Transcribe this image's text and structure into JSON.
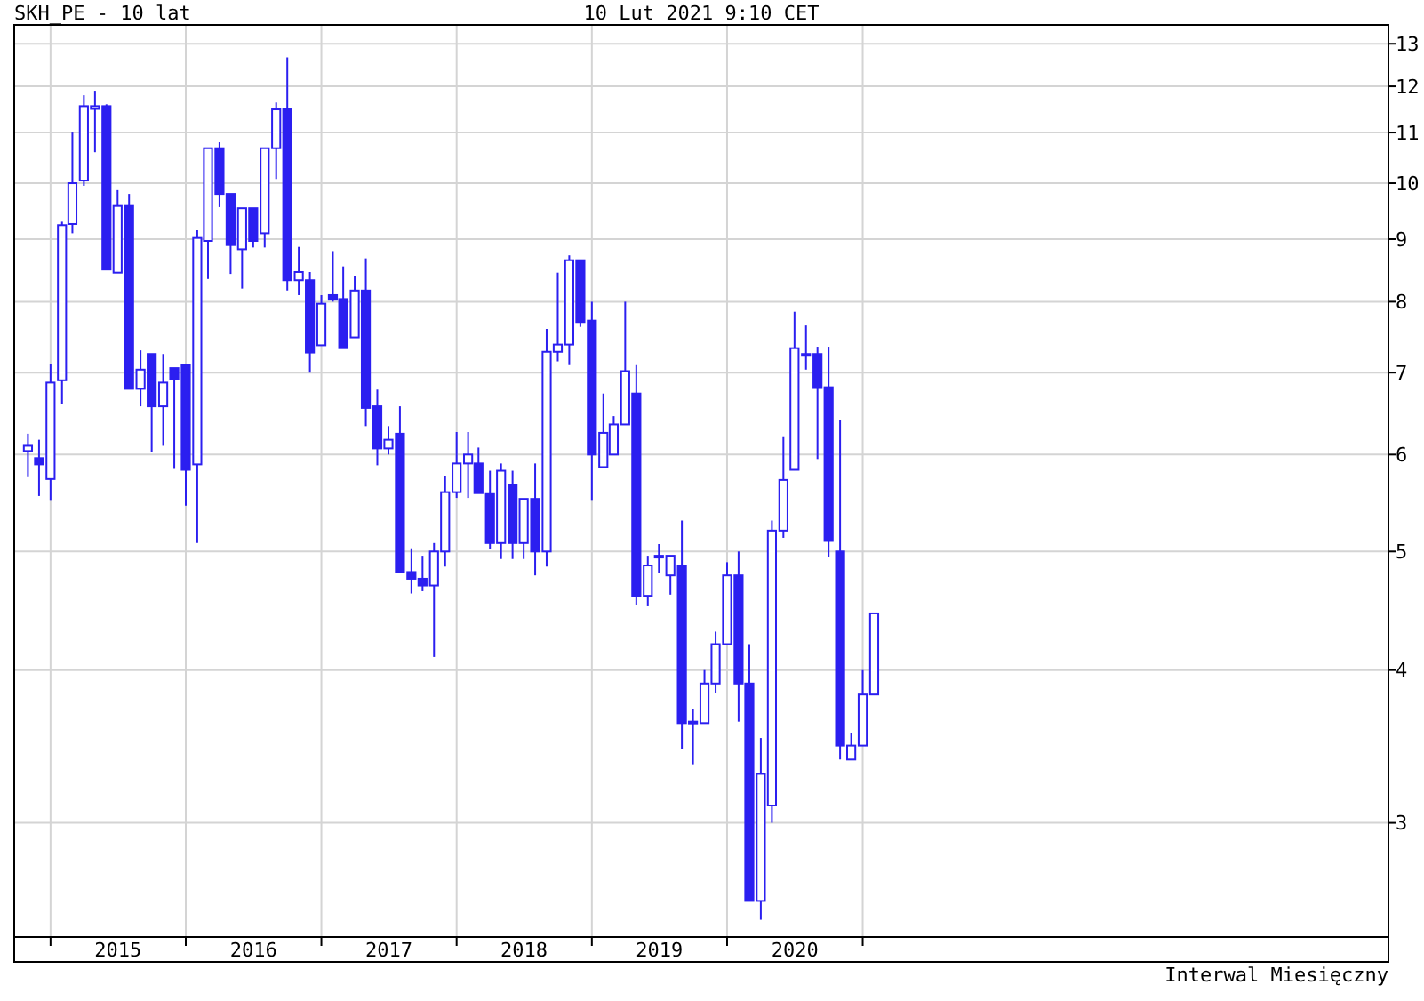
{
  "chart_data": {
    "type": "candlestick",
    "title": "SKH_PE - 10 lat",
    "subtitle": "10 Lut 2021 9:10 CET",
    "annotations": [
      "Interwal Miesięczny"
    ],
    "color": "#2b1ff0",
    "log": "y",
    "grid": true,
    "x": [
      "2014-11",
      "2014-12",
      "2015-01",
      "2015-02",
      "2015-03",
      "2015-04",
      "2015-05",
      "2015-06",
      "2015-07",
      "2015-08",
      "2015-09",
      "2015-10",
      "2015-11",
      "2015-12",
      "2016-01",
      "2016-02",
      "2016-03",
      "2016-04",
      "2016-05",
      "2016-06",
      "2016-07",
      "2016-08",
      "2016-09",
      "2016-10",
      "2016-11",
      "2016-12",
      "2017-01",
      "2017-02",
      "2017-03",
      "2017-04",
      "2017-05",
      "2017-06",
      "2017-07",
      "2017-08",
      "2017-09",
      "2017-10",
      "2017-11",
      "2017-12",
      "2018-01",
      "2018-02",
      "2018-03",
      "2018-04",
      "2018-05",
      "2018-06",
      "2018-07",
      "2018-08",
      "2018-09",
      "2018-10",
      "2018-11",
      "2018-12",
      "2019-01",
      "2019-02",
      "2019-03",
      "2019-04",
      "2019-05",
      "2019-06",
      "2019-07",
      "2019-08",
      "2019-09",
      "2019-10",
      "2019-11",
      "2019-12",
      "2020-01",
      "2020-02",
      "2020-03",
      "2020-04",
      "2020-05",
      "2020-06",
      "2020-07",
      "2020-08",
      "2020-09",
      "2020-10",
      "2020-11",
      "2020-12",
      "2021-01",
      "2021-02"
    ],
    "ohlc": [
      [
        6.04,
        6.24,
        5.75,
        6.1
      ],
      [
        5.96,
        6.17,
        5.55,
        5.89
      ],
      [
        5.73,
        7.12,
        5.5,
        6.87
      ],
      [
        6.9,
        9.3,
        6.6,
        9.24
      ],
      [
        9.26,
        11.0,
        9.1,
        10.0
      ],
      [
        10.05,
        11.8,
        9.95,
        11.56
      ],
      [
        11.5,
        11.9,
        10.6,
        11.56
      ],
      [
        11.56,
        11.6,
        8.5,
        8.5
      ],
      [
        8.45,
        9.87,
        8.45,
        9.58
      ],
      [
        9.58,
        9.8,
        6.79,
        6.79
      ],
      [
        6.79,
        7.3,
        6.57,
        7.04
      ],
      [
        7.25,
        7.25,
        6.03,
        6.57
      ],
      [
        6.57,
        7.25,
        6.1,
        6.87
      ],
      [
        7.06,
        7.06,
        5.84,
        6.91
      ],
      [
        7.1,
        7.1,
        5.45,
        5.83
      ],
      [
        5.89,
        9.15,
        5.08,
        9.02
      ],
      [
        8.97,
        10.68,
        8.35,
        10.68
      ],
      [
        10.68,
        10.8,
        9.56,
        9.8
      ],
      [
        9.8,
        9.8,
        8.43,
        8.9
      ],
      [
        8.83,
        9.54,
        8.2,
        9.54
      ],
      [
        9.54,
        9.54,
        8.86,
        8.97
      ],
      [
        9.1,
        10.68,
        8.86,
        10.68
      ],
      [
        10.68,
        11.64,
        10.08,
        11.49
      ],
      [
        11.49,
        12.67,
        8.17,
        8.33
      ],
      [
        8.33,
        8.87,
        8.1,
        8.46
      ],
      [
        8.33,
        8.46,
        7.0,
        7.27
      ],
      [
        7.37,
        8.1,
        7.37,
        7.97
      ],
      [
        8.1,
        8.8,
        8.0,
        8.03
      ],
      [
        8.04,
        8.55,
        7.33,
        7.33
      ],
      [
        7.48,
        8.4,
        7.48,
        8.17
      ],
      [
        8.17,
        8.68,
        6.33,
        6.55
      ],
      [
        6.57,
        6.78,
        5.88,
        6.07
      ],
      [
        6.07,
        6.33,
        6.0,
        6.17
      ],
      [
        6.24,
        6.57,
        4.81,
        4.81
      ],
      [
        4.81,
        5.03,
        4.62,
        4.75
      ],
      [
        4.75,
        4.96,
        4.64,
        4.69
      ],
      [
        4.69,
        5.08,
        4.1,
        5.0
      ],
      [
        5.0,
        5.76,
        4.86,
        5.59
      ],
      [
        5.59,
        6.26,
        5.53,
        5.9
      ],
      [
        5.9,
        6.26,
        5.53,
        6.0
      ],
      [
        5.9,
        6.08,
        5.58,
        5.58
      ],
      [
        5.57,
        5.82,
        5.02,
        5.08
      ],
      [
        5.08,
        5.9,
        4.93,
        5.82
      ],
      [
        5.67,
        5.82,
        4.93,
        5.08
      ],
      [
        5.08,
        5.52,
        4.93,
        5.52
      ],
      [
        5.52,
        5.9,
        4.78,
        5.0
      ],
      [
        5.0,
        7.6,
        4.86,
        7.28
      ],
      [
        7.28,
        8.45,
        7.15,
        7.38
      ],
      [
        7.38,
        8.73,
        7.1,
        8.65
      ],
      [
        8.65,
        8.65,
        7.63,
        7.7
      ],
      [
        7.72,
        8.0,
        5.5,
        6.0
      ],
      [
        5.86,
        6.73,
        5.86,
        6.25
      ],
      [
        6.0,
        6.45,
        6.0,
        6.35
      ],
      [
        6.35,
        8.0,
        6.35,
        7.02
      ],
      [
        6.73,
        7.1,
        4.52,
        4.6
      ],
      [
        4.6,
        4.96,
        4.51,
        4.87
      ],
      [
        4.96,
        5.07,
        4.8,
        4.96
      ],
      [
        4.78,
        4.96,
        4.61,
        4.96
      ],
      [
        4.87,
        5.3,
        3.45,
        3.62
      ],
      [
        3.62,
        3.72,
        3.35,
        3.63
      ],
      [
        3.62,
        4.0,
        3.62,
        3.9
      ],
      [
        3.9,
        4.3,
        3.83,
        4.2
      ],
      [
        4.2,
        4.9,
        4.2,
        4.78
      ],
      [
        4.78,
        5.0,
        3.63,
        3.9
      ],
      [
        3.9,
        4.2,
        2.59,
        2.59
      ],
      [
        2.59,
        3.52,
        2.5,
        3.29
      ],
      [
        3.1,
        5.3,
        3.0,
        5.2
      ],
      [
        5.2,
        6.2,
        5.13,
        5.72
      ],
      [
        5.83,
        7.85,
        5.83,
        7.33
      ],
      [
        7.25,
        7.65,
        7.04,
        7.25
      ],
      [
        7.25,
        7.35,
        5.95,
        6.8
      ],
      [
        6.81,
        7.35,
        4.95,
        5.1
      ],
      [
        5.0,
        6.4,
        3.38,
        3.47
      ],
      [
        3.38,
        3.55,
        3.38,
        3.47
      ],
      [
        3.47,
        4.0,
        3.47,
        3.82
      ],
      [
        3.82,
        4.45,
        3.82,
        4.45
      ]
    ],
    "xlim": [
      "2014-09-25",
      "2024-11-20"
    ],
    "xticks": [
      {
        "value": "2015-01-01",
        "label": null
      },
      {
        "value": "2015-07-02",
        "label": "2015"
      },
      {
        "value": "2016-01-01",
        "label": null
      },
      {
        "value": "2016-07-02",
        "label": "2016"
      },
      {
        "value": "2017-01-01",
        "label": null
      },
      {
        "value": "2017-07-02",
        "label": "2017"
      },
      {
        "value": "2018-01-01",
        "label": null
      },
      {
        "value": "2018-07-02",
        "label": "2018"
      },
      {
        "value": "2019-01-01",
        "label": null
      },
      {
        "value": "2019-07-02",
        "label": "2019"
      },
      {
        "value": "2020-01-01",
        "label": null
      },
      {
        "value": "2020-07-02",
        "label": "2020"
      },
      {
        "value": "2021-01-01",
        "label": null
      }
    ],
    "ylim": [
      2.42,
      13.47
    ],
    "yticks": [
      3,
      4,
      5,
      6,
      7,
      8,
      9,
      10,
      11,
      12,
      13
    ]
  }
}
